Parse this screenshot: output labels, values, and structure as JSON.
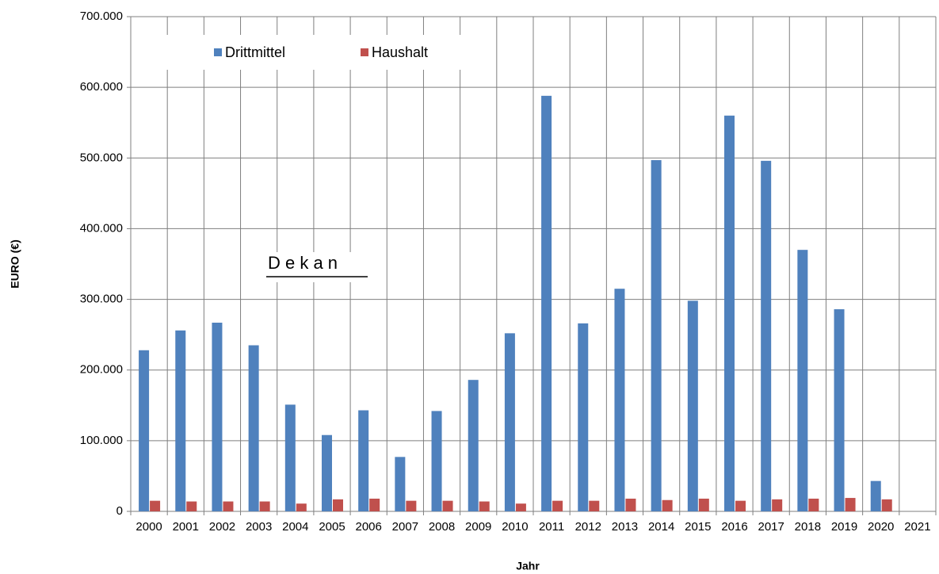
{
  "chart_data": {
    "type": "bar",
    "x_label": "Jahr",
    "y_label": "EURO (€)",
    "annotation": "D e k a n",
    "categories": [
      "2000",
      "2001",
      "2002",
      "2003",
      "2004",
      "2005",
      "2006",
      "2007",
      "2008",
      "2009",
      "2010",
      "2011",
      "2012",
      "2013",
      "2014",
      "2015",
      "2016",
      "2017",
      "2018",
      "2019",
      "2020",
      "2021"
    ],
    "series": [
      {
        "name": "Drittmittel",
        "color": "#4f81bd",
        "values": [
          228000,
          256000,
          267000,
          235000,
          151000,
          108000,
          143000,
          77000,
          142000,
          186000,
          252000,
          588000,
          266000,
          315000,
          497000,
          298000,
          560000,
          496000,
          370000,
          286000,
          43000,
          null
        ]
      },
      {
        "name": "Haushalt",
        "color": "#c0504d",
        "values": [
          15000,
          14000,
          14000,
          14000,
          11000,
          17000,
          18000,
          15000,
          15000,
          14000,
          11000,
          15000,
          15000,
          18000,
          16000,
          18000,
          15000,
          17000,
          18000,
          19000,
          17000,
          null
        ]
      }
    ],
    "ylim": [
      0,
      700000
    ],
    "yticks": [
      0,
      {
        "value": 100000,
        "label": "100.000"
      },
      {
        "value": 200000,
        "label": "200.000"
      },
      {
        "value": 300000,
        "label": "300.000"
      },
      {
        "value": 400000,
        "label": "400.000"
      },
      {
        "value": 500000,
        "label": "500.000"
      },
      {
        "value": 600000,
        "label": "600.000"
      },
      {
        "value": 700000,
        "label": "700.000"
      }
    ],
    "grid": true,
    "legend": "top-left"
  }
}
